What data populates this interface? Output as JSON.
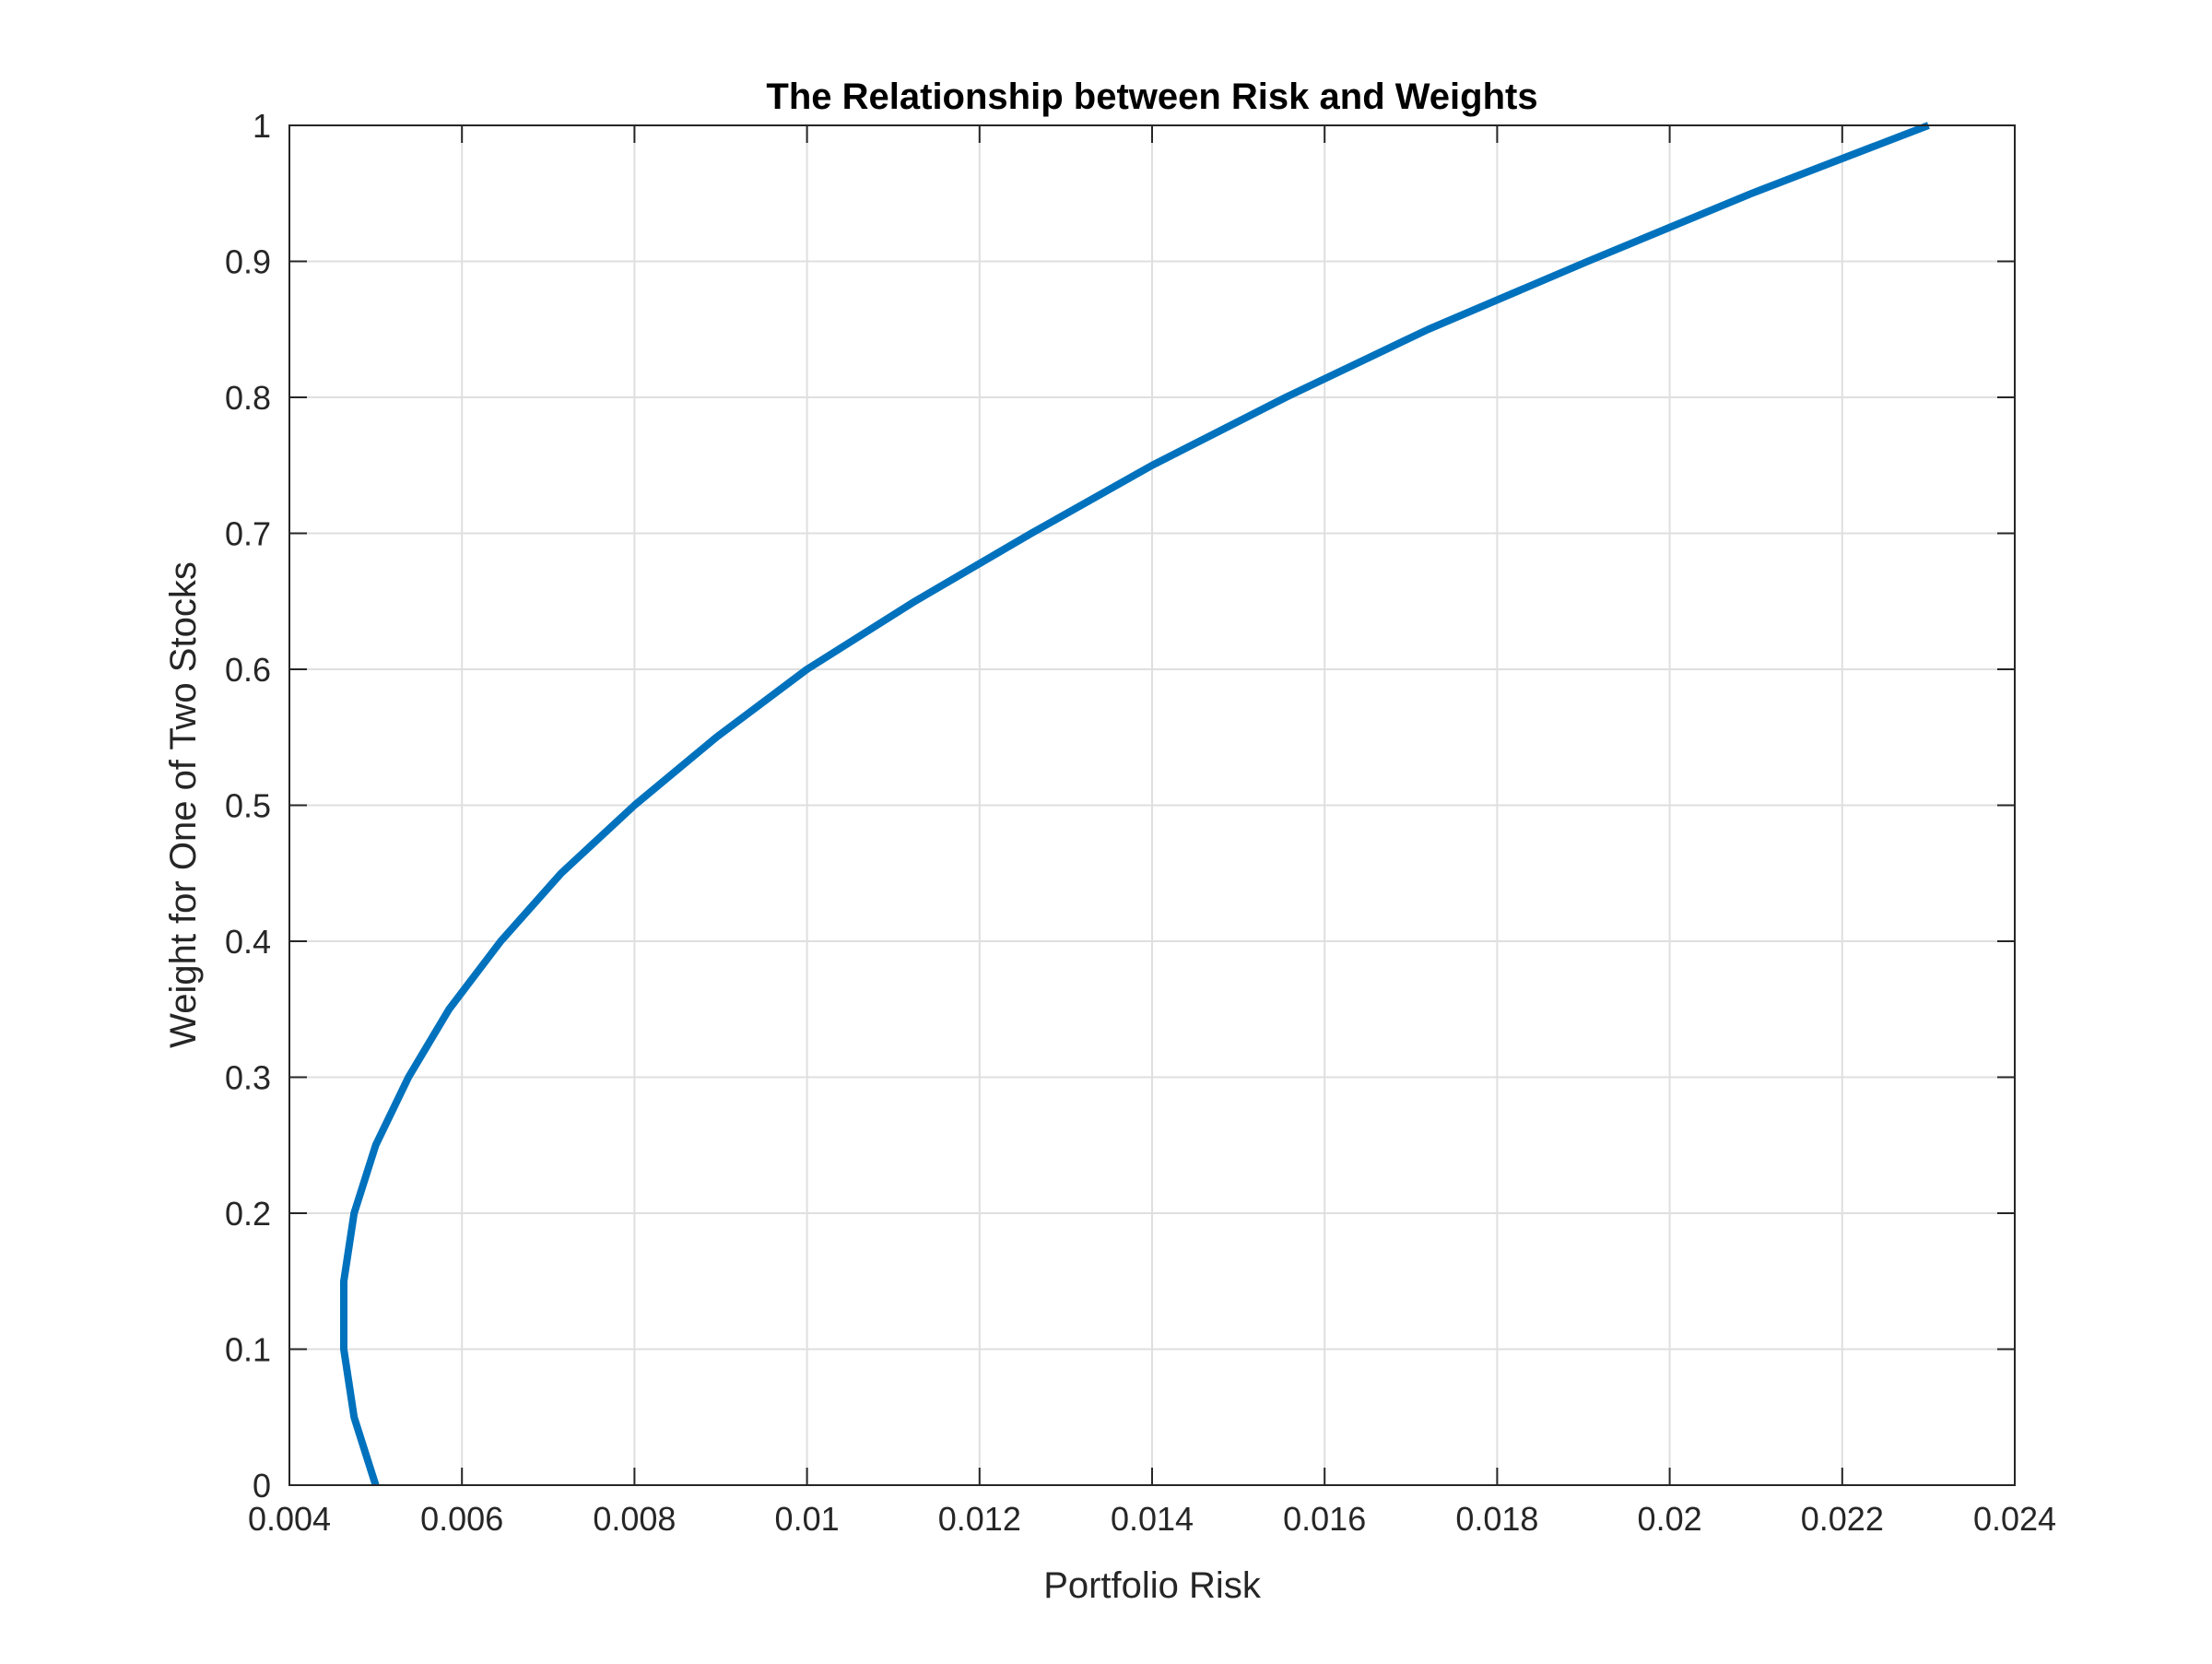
{
  "chart_data": {
    "type": "line",
    "title": "The Relationship between Risk and Weights",
    "xlabel": "Portfolio Risk",
    "ylabel": "Weight for One of Two Stocks",
    "xlim": [
      0.004,
      0.024
    ],
    "ylim": [
      0,
      1
    ],
    "xticks": [
      0.004,
      0.006,
      0.008,
      0.01,
      0.012,
      0.014,
      0.016,
      0.018,
      0.02,
      0.022,
      0.024
    ],
    "xtick_labels": [
      "0.004",
      "0.006",
      "0.008",
      "0.01",
      "0.012",
      "0.014",
      "0.016",
      "0.018",
      "0.02",
      "0.022",
      "0.024"
    ],
    "yticks": [
      0,
      0.1,
      0.2,
      0.3,
      0.4,
      0.5,
      0.6,
      0.7,
      0.8,
      0.9,
      1
    ],
    "ytick_labels": [
      "0",
      "0.1",
      "0.2",
      "0.3",
      "0.4",
      "0.5",
      "0.6",
      "0.7",
      "0.8",
      "0.9",
      "1"
    ],
    "grid": true,
    "series": [
      {
        "color": "#0072BD",
        "x": [
          0.005,
          0.00475,
          0.00463,
          0.00463,
          0.00475,
          0.005,
          0.00538,
          0.00585,
          0.00645,
          0.00715,
          0.008,
          0.00895,
          0.01,
          0.01125,
          0.0126,
          0.014,
          0.01555,
          0.0172,
          0.01905,
          0.02095,
          0.023
        ],
        "y": [
          0,
          0.05,
          0.1,
          0.15,
          0.2,
          0.25,
          0.3,
          0.35,
          0.4,
          0.45,
          0.5,
          0.55,
          0.6,
          0.65,
          0.7,
          0.75,
          0.8,
          0.85,
          0.9,
          0.95,
          1.0
        ]
      }
    ]
  }
}
